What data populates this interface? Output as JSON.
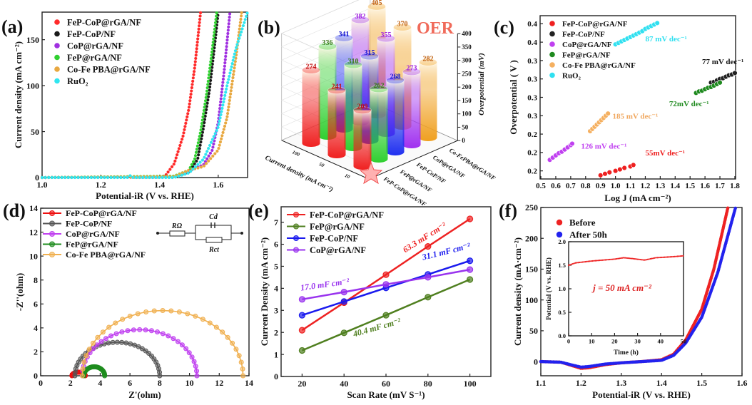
{
  "panel_labels": [
    "(a)",
    "(b)",
    "(c)",
    "(d)",
    "(e)",
    "(f)"
  ],
  "watermark": "大数跨境",
  "chart_data": [
    {
      "id": "a",
      "type": "scatter",
      "xlabel": "Potential-iR (V vs. RHE)",
      "ylabel": "Current density (mA cm⁻²)",
      "xlim": [
        1.0,
        1.7
      ],
      "ylim": [
        0,
        180
      ],
      "xticks": [
        "1.0",
        "1.2",
        "1.4",
        "1.6"
      ],
      "yticks": [
        "0",
        "50",
        "100",
        "150"
      ],
      "legend": "top-left",
      "series": [
        {
          "name": "FeP-CoP@rGA/NF",
          "color": "#ff2a2a",
          "points": [
            [
              1.0,
              0
            ],
            [
              1.4,
              0.5
            ],
            [
              1.42,
              2
            ],
            [
              1.45,
              15
            ],
            [
              1.48,
              45
            ],
            [
              1.5,
              75
            ],
            [
              1.52,
              120
            ],
            [
              1.54,
              180
            ]
          ]
        },
        {
          "name": "FeP-CoP/NF",
          "color": "#1a1a1a",
          "points": [
            [
              1.0,
              0
            ],
            [
              1.45,
              1
            ],
            [
              1.5,
              6
            ],
            [
              1.53,
              20
            ],
            [
              1.55,
              55
            ],
            [
              1.57,
              95
            ],
            [
              1.59,
              150
            ],
            [
              1.6,
              180
            ]
          ]
        },
        {
          "name": "CoP@rGA/NF",
          "color": "#a030e0",
          "points": [
            [
              1.0,
              0
            ],
            [
              1.45,
              1
            ],
            [
              1.5,
              7
            ],
            [
              1.55,
              14
            ],
            [
              1.58,
              30
            ],
            [
              1.6,
              60
            ],
            [
              1.62,
              115
            ],
            [
              1.64,
              180
            ]
          ]
        },
        {
          "name": "FeP@rGA/NF",
          "color": "#30d030",
          "points": [
            [
              1.0,
              0
            ],
            [
              1.45,
              1.5
            ],
            [
              1.5,
              8
            ],
            [
              1.52,
              20
            ],
            [
              1.54,
              50
            ],
            [
              1.56,
              90
            ],
            [
              1.58,
              140
            ],
            [
              1.595,
              180
            ]
          ]
        },
        {
          "name": "Co-Fe PBA@rGA/NF",
          "color": "#e8a840",
          "points": [
            [
              1.0,
              0
            ],
            [
              1.45,
              1
            ],
            [
              1.5,
              8
            ],
            [
              1.55,
              12
            ],
            [
              1.6,
              30
            ],
            [
              1.63,
              65
            ],
            [
              1.66,
              130
            ],
            [
              1.68,
              180
            ]
          ]
        },
        {
          "name": "RuO₂",
          "color": "#30e6f0",
          "points": [
            [
              1.0,
              0
            ],
            [
              1.29,
              0
            ],
            [
              1.3,
              2
            ],
            [
              1.31,
              0
            ],
            [
              1.45,
              0
            ],
            [
              1.5,
              5
            ],
            [
              1.55,
              20
            ],
            [
              1.6,
              55
            ],
            [
              1.63,
              100
            ],
            [
              1.66,
              140
            ],
            [
              1.7,
              180
            ]
          ]
        }
      ]
    },
    {
      "id": "b",
      "type": "bar3d",
      "zlabel": "Overpotential (mV)",
      "rowlabel": "Current density (mA cm⁻²)",
      "zlim": [
        0,
        400
      ],
      "zticks": [
        "0",
        "50",
        "100",
        "150",
        "200",
        "250",
        "300",
        "350",
        "400"
      ],
      "rows": [
        "10",
        "50",
        "100"
      ],
      "categories": [
        "FeP-CoP@rGA/NF",
        "FeP@rGA/NF",
        "FeP-CoP/NF",
        "CoP@rGA/NF",
        "Co-FePBA@rGA/NF"
      ],
      "colors": [
        "#f02020",
        "#30d030",
        "#2030f0",
        "#a030f0",
        "#f0a020"
      ],
      "label_colors": [
        "#c01010",
        "#3a7a1a",
        "#1010d0",
        "#a020e0",
        "#c06010"
      ],
      "values": [
        [
          209,
          262,
          268,
          273,
          282
        ],
        [
          241,
          310,
          315,
          355,
          370
        ],
        [
          274,
          336,
          341,
          382,
          405
        ]
      ],
      "badge": "OER"
    },
    {
      "id": "c",
      "type": "scatter",
      "xlabel": "Log J (mA cm⁻²)",
      "ylabel": "Overpotential ( V )",
      "xlim": [
        0.495,
        1.805
      ],
      "ylim": [
        0.189,
        0.411
      ],
      "xticks": [
        "0.5",
        "0.6",
        "0.7",
        "0.8",
        "0.9",
        "1.0",
        "1.1",
        "1.2",
        "1.3",
        "1.4",
        "1.5",
        "1.6",
        "1.7",
        "1.8"
      ],
      "ytick_values": [
        0.2,
        0.225,
        0.25,
        0.275,
        0.3,
        0.325,
        0.35,
        0.375,
        0.4
      ],
      "yticks": [
        "0.2",
        "0.2",
        "0.2",
        "0.3",
        "0.3",
        "0.3",
        "0.3",
        "0.4",
        "0.4"
      ],
      "legend": "top-left",
      "series": [
        {
          "name": "FeP-CoP@rGA/NF",
          "color": "#ee2020",
          "x": [
            0.9,
            0.93,
            0.96,
            1.0,
            1.03,
            1.06,
            1.1,
            1.12
          ],
          "y": [
            0.194,
            0.196,
            0.198,
            0.2,
            0.202,
            0.204,
            0.206,
            0.208
          ]
        },
        {
          "name": "FeP-CoP/NF",
          "color": "#222222",
          "x": [
            1.64,
            1.66,
            1.68,
            1.7,
            1.72,
            1.74,
            1.76,
            1.78,
            1.8
          ],
          "y": [
            0.32,
            0.321,
            0.323,
            0.325,
            0.326,
            0.328,
            0.33,
            0.331,
            0.333
          ]
        },
        {
          "name": "CoP@rGA/NF",
          "color": "#c040f0",
          "x": [
            0.56,
            0.58,
            0.6,
            0.62,
            0.64,
            0.66,
            0.68,
            0.7,
            0.71
          ],
          "y": [
            0.215,
            0.218,
            0.221,
            0.224,
            0.226,
            0.229,
            0.232,
            0.235,
            0.237
          ]
        },
        {
          "name": "FeP@rGA/NF",
          "color": "#1f8a1f",
          "x": [
            1.54,
            1.56,
            1.58,
            1.6,
            1.62,
            1.64,
            1.66,
            1.68,
            1.7
          ],
          "y": [
            0.306,
            0.308,
            0.309,
            0.311,
            0.313,
            0.314,
            0.316,
            0.318,
            0.32
          ]
        },
        {
          "name": "Co-Fe PBA@rGA/NF",
          "color": "#f5b060",
          "x": [
            0.83,
            0.845,
            0.86,
            0.875,
            0.89,
            0.905,
            0.92,
            0.935,
            0.95
          ],
          "y": [
            0.254,
            0.257,
            0.26,
            0.263,
            0.266,
            0.269,
            0.272,
            0.275,
            0.278
          ]
        },
        {
          "name": "RuO₂",
          "color": "#30e0f0",
          "x": [
            1.0,
            1.02,
            1.04,
            1.06,
            1.08,
            1.1,
            1.12,
            1.14,
            1.16,
            1.18,
            1.2,
            1.22,
            1.24,
            1.26,
            1.28
          ],
          "y": [
            0.372,
            0.374,
            0.376,
            0.378,
            0.38,
            0.382,
            0.384,
            0.386,
            0.388,
            0.39,
            0.393,
            0.395,
            0.397,
            0.399,
            0.401
          ]
        }
      ],
      "annotations": [
        {
          "text": "87 mV dec⁻¹",
          "color": "#30e0f0",
          "x": 1.2,
          "y": 0.376
        },
        {
          "text": "77 mV dec⁻¹",
          "color": "#111111",
          "x": 1.58,
          "y": 0.345
        },
        {
          "text": "72mV dec⁻¹",
          "color": "#1f8a1f",
          "x": 1.36,
          "y": 0.288
        },
        {
          "text": "185 mV dec⁻¹",
          "color": "#f0a860",
          "x": 0.98,
          "y": 0.271
        },
        {
          "text": "126 mV dec⁻¹",
          "color": "#c040f0",
          "x": 0.77,
          "y": 0.23
        },
        {
          "text": "55mV dec⁻¹",
          "color": "#ee2020",
          "x": 1.2,
          "y": 0.221
        }
      ]
    },
    {
      "id": "d",
      "type": "line",
      "xlabel": "Z'(ohm)",
      "ylabel": "-Z''(ohm)",
      "xlim": [
        0,
        14
      ],
      "ylim": [
        0,
        14
      ],
      "xticks": [
        "0",
        "2",
        "4",
        "6",
        "8",
        "10",
        "12",
        "14"
      ],
      "yticks": [
        "0",
        "2",
        "4",
        "6",
        "8",
        "10",
        "12",
        "14"
      ],
      "legend": "top-left",
      "series": [
        {
          "name": "FeP-CoP@rGA/NF",
          "color": "#ee1111",
          "arc": {
            "start": 2.1,
            "end": 3.0,
            "peak": 0.3
          }
        },
        {
          "name": "FeP-CoP/NF",
          "color": "#555555",
          "arc": {
            "start": 2.3,
            "end": 8.0,
            "peak": 2.8
          }
        },
        {
          "name": "CoP@rGA/NF",
          "color": "#c040f0",
          "arc": {
            "start": 2.8,
            "end": 10.5,
            "peak": 3.85
          }
        },
        {
          "name": "FeP@rGA/NF",
          "color": "#1e8c1e",
          "arc": {
            "start": 2.9,
            "end": 4.3,
            "peak": 0.75
          }
        },
        {
          "name": "Co-Fe PBA@rGA/NF",
          "color": "#f0b050",
          "arc": {
            "start": 2.8,
            "end": 13.6,
            "peak": 5.45
          }
        }
      ],
      "circuit": {
        "r_ohm": "RΩ",
        "cd": "Cd",
        "rct": "Rct"
      }
    },
    {
      "id": "e",
      "type": "line",
      "xlabel": "Scan Rate (mV S⁻¹)",
      "ylabel": "Current Density (mA cm⁻²)",
      "xlim": [
        10,
        110
      ],
      "ylim": [
        0,
        7.7
      ],
      "xticks": [
        "20",
        "40",
        "60",
        "80",
        "100"
      ],
      "yticks": [
        "0",
        "1",
        "2",
        "3",
        "4",
        "5",
        "6",
        "7"
      ],
      "legend": "top-left",
      "x": [
        20,
        40,
        60,
        80,
        100
      ],
      "series": [
        {
          "name": "FeP-CoP@rGA/NF",
          "color": "#ee2222",
          "values": [
            2.1,
            3.35,
            4.62,
            5.9,
            7.15
          ]
        },
        {
          "name": "FeP@rGA/NF",
          "color": "#4f7f1f",
          "values": [
            1.18,
            1.98,
            2.78,
            3.6,
            4.4
          ]
        },
        {
          "name": "FeP-CoP/NF",
          "color": "#1a1aee",
          "values": [
            2.78,
            3.4,
            4.02,
            4.63,
            5.25
          ]
        },
        {
          "name": "CoP@rGA/NF",
          "color": "#9933ee",
          "values": [
            3.5,
            3.83,
            4.18,
            4.5,
            4.85
          ]
        }
      ],
      "annotations": [
        {
          "text": "63.3 mF cm⁻²",
          "color": "#ee2222",
          "x": 79,
          "y": 6.2,
          "angle": -32
        },
        {
          "text": "31.1 mF cm⁻²",
          "color": "#1a1aee",
          "x": 89,
          "y": 5.55,
          "angle": -14
        },
        {
          "text": "17.0 mF cm⁻²",
          "color": "#9933ee",
          "x": 31,
          "y": 4.05,
          "angle": -8
        },
        {
          "text": "40.4 mF cm⁻²",
          "color": "#4f7f1f",
          "x": 56,
          "y": 2.1,
          "angle": -16
        }
      ]
    },
    {
      "id": "f",
      "type": "scatter",
      "xlabel": "Potential-iR (V vs. RHE)",
      "ylabel": "Current density (mA·cm⁻²)",
      "xlim": [
        1.1,
        1.6
      ],
      "ylim": [
        -23,
        250
      ],
      "xticks": [
        "1.1",
        "1.2",
        "1.3",
        "1.4",
        "1.5",
        "1.6"
      ],
      "yticks": [
        "0",
        "50",
        "100",
        "150",
        "200",
        "250"
      ],
      "legend": "top-left",
      "series": [
        {
          "name": "Before",
          "color": "#ee2222",
          "points": [
            [
              1.1,
              0
            ],
            [
              1.15,
              -1
            ],
            [
              1.18,
              -7
            ],
            [
              1.2,
              -11
            ],
            [
              1.22,
              -10
            ],
            [
              1.26,
              -5
            ],
            [
              1.3,
              -2
            ],
            [
              1.35,
              0
            ],
            [
              1.4,
              3
            ],
            [
              1.43,
              12
            ],
            [
              1.46,
              35
            ],
            [
              1.5,
              85
            ],
            [
              1.53,
              150
            ],
            [
              1.565,
              250
            ]
          ]
        },
        {
          "name": "After 50h",
          "color": "#2222ee",
          "points": [
            [
              1.1,
              0
            ],
            [
              1.15,
              -1
            ],
            [
              1.18,
              -6
            ],
            [
              1.2,
              -9
            ],
            [
              1.22,
              -8
            ],
            [
              1.26,
              -4
            ],
            [
              1.3,
              -2
            ],
            [
              1.35,
              0
            ],
            [
              1.4,
              2
            ],
            [
              1.43,
              10
            ],
            [
              1.46,
              30
            ],
            [
              1.5,
              72
            ],
            [
              1.54,
              145
            ],
            [
              1.584,
              250
            ]
          ]
        }
      ],
      "inset": {
        "xlabel": "Time (h)",
        "ylabel": "Potential (V vs. RHE)",
        "xlim": [
          0,
          50
        ],
        "ylim": [
          0,
          2.0
        ],
        "xticks": [
          "0",
          "10",
          "20",
          "30",
          "40",
          "50"
        ],
        "yticks": [
          "0.0",
          "0.5",
          "1.0",
          "1.5",
          "2.0"
        ],
        "series": {
          "name": "Potential",
          "color": "#ee2222",
          "points": [
            [
              0,
              1.5
            ],
            [
              3,
              1.55
            ],
            [
              10,
              1.59
            ],
            [
              15,
              1.61
            ],
            [
              20,
              1.63
            ],
            [
              24,
              1.66
            ],
            [
              28,
              1.64
            ],
            [
              33,
              1.61
            ],
            [
              36,
              1.64
            ],
            [
              38,
              1.66
            ],
            [
              45,
              1.68
            ],
            [
              50,
              1.7
            ]
          ]
        },
        "annotation": "j = 50 mA cm⁻²"
      }
    }
  ]
}
